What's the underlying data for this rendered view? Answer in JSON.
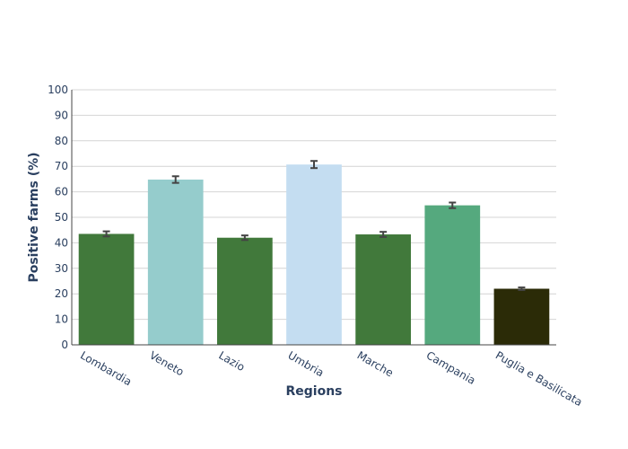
{
  "chart_data": {
    "type": "bar",
    "categories": [
      "Lombardia",
      "Veneto",
      "Lazio",
      "Umbria",
      "Marche",
      "Campania",
      "Puglia e Basilicata"
    ],
    "values": [
      43.5,
      64.8,
      42.0,
      70.7,
      43.3,
      54.7,
      22.0
    ],
    "error": [
      1.0,
      1.3,
      0.9,
      1.4,
      1.0,
      1.1,
      0.5
    ],
    "colors": [
      "#41793b",
      "#95cccc",
      "#41793b",
      "#c4ddf1",
      "#41793b",
      "#55a97e",
      "#2b2b07"
    ],
    "title": "",
    "xlabel": "Regions",
    "ylabel": "Positive farms (%)",
    "ylim": [
      0,
      100
    ],
    "yticks": [
      "0",
      "10",
      "20",
      "30",
      "40",
      "50",
      "60",
      "70",
      "80",
      "90",
      "100"
    ],
    "grid": true,
    "legend": "none"
  }
}
